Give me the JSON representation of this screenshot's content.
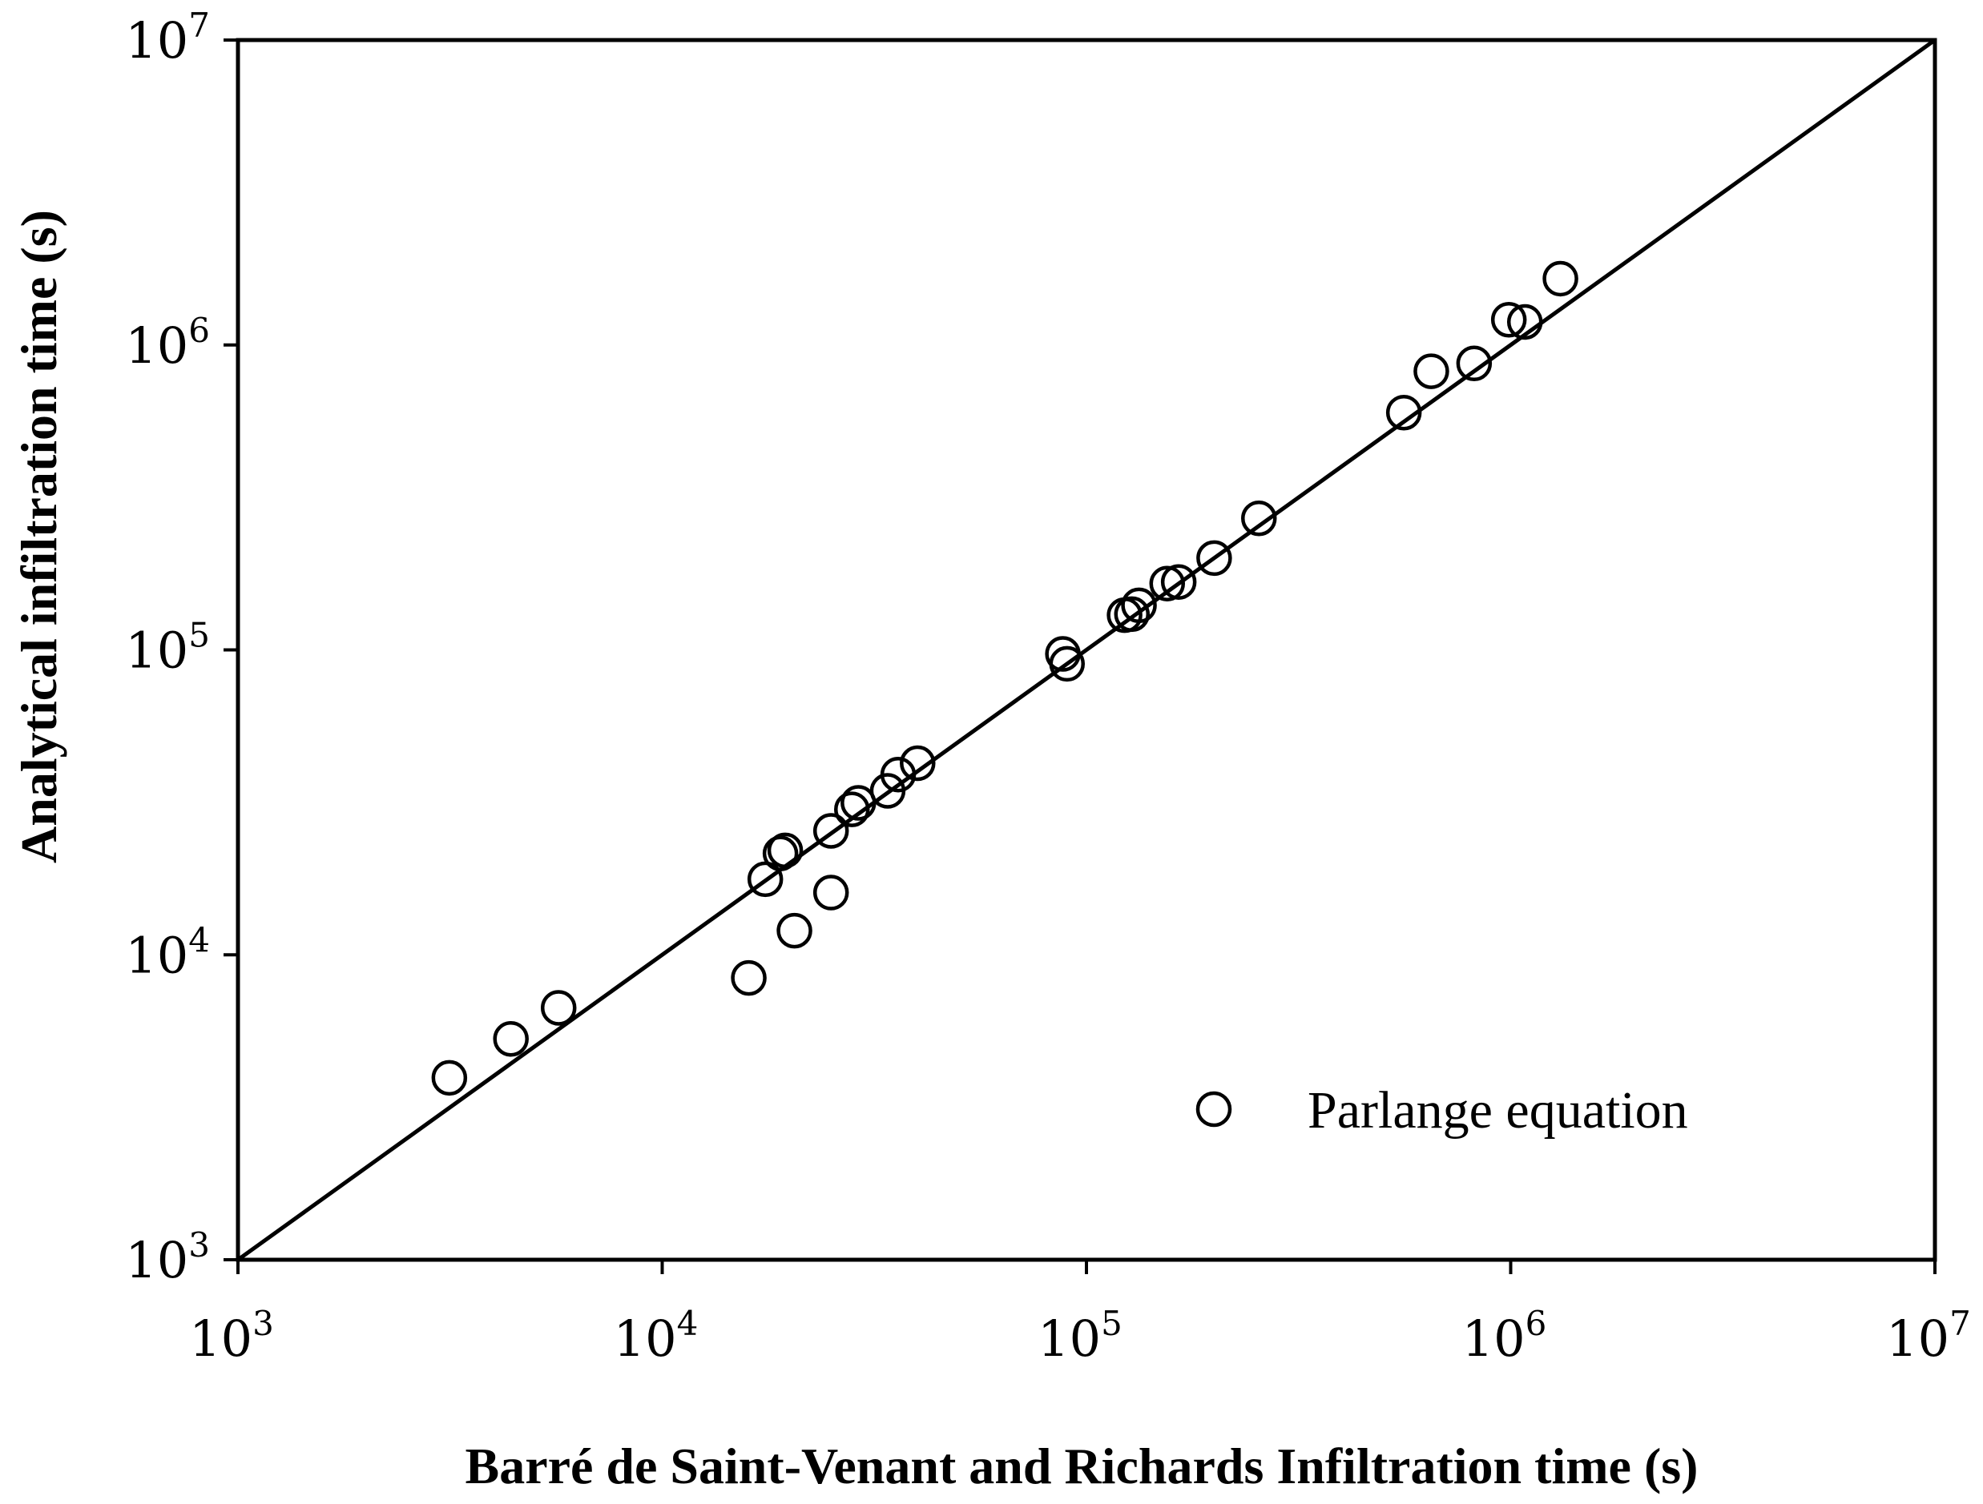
{
  "chart_data": {
    "type": "scatter",
    "xlabel": "Barré de Saint-Venant and Richards Infiltration time (s)",
    "ylabel": "Analytical infiltration time (s)",
    "xscale": "log",
    "yscale": "log",
    "xlim": [
      1000,
      10000000
    ],
    "ylim": [
      1000,
      10000000
    ],
    "grid": false,
    "legend_position": "bottom-right",
    "ticks": [
      {
        "base": "10",
        "exp": "3",
        "value": 1000
      },
      {
        "base": "10",
        "exp": "4",
        "value": 10000
      },
      {
        "base": "10",
        "exp": "5",
        "value": 100000
      },
      {
        "base": "10",
        "exp": "6",
        "value": 1000000
      },
      {
        "base": "10",
        "exp": "7",
        "value": 10000000
      }
    ],
    "reference_line": {
      "type": "1:1",
      "from": [
        1000,
        1000
      ],
      "to": [
        10000000,
        10000000
      ]
    },
    "series": [
      {
        "name": "Parlange equation",
        "marker": "open-circle",
        "color": "#000000",
        "points": [
          [
            3150,
            3950
          ],
          [
            4400,
            5300
          ],
          [
            5700,
            6700
          ],
          [
            16000,
            8400
          ],
          [
            17500,
            17700
          ],
          [
            19000,
            21500
          ],
          [
            19500,
            22000
          ],
          [
            20500,
            12000
          ],
          [
            25000,
            25500
          ],
          [
            25000,
            16000
          ],
          [
            28000,
            30000
          ],
          [
            29000,
            31500
          ],
          [
            34000,
            34500
          ],
          [
            36000,
            39000
          ],
          [
            40000,
            42500
          ],
          [
            88000,
            97000
          ],
          [
            90000,
            90000
          ],
          [
            123000,
            130000
          ],
          [
            128000,
            131000
          ],
          [
            133000,
            140000
          ],
          [
            155000,
            165000
          ],
          [
            165000,
            167000
          ],
          [
            200000,
            200000
          ],
          [
            255000,
            270000
          ],
          [
            560000,
            600000
          ],
          [
            650000,
            820000
          ],
          [
            820000,
            870000
          ],
          [
            990000,
            1210000
          ],
          [
            1080000,
            1190000
          ],
          [
            1310000,
            1650000
          ]
        ]
      }
    ]
  }
}
